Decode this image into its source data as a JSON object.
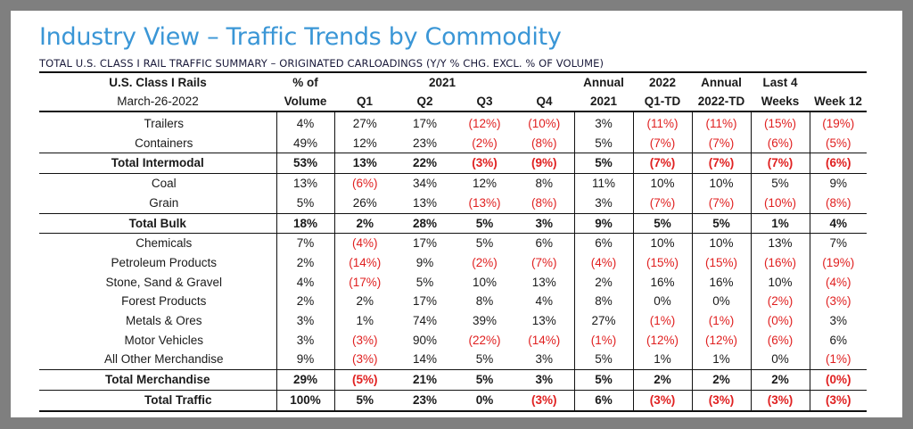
{
  "page": {
    "title": "Industry View – Traffic Trends by Commodity",
    "subtitle": "TOTAL U.S. CLASS I RAIL TRAFFIC SUMMARY – ORIGINATED CARLOADINGS (Y/Y % CHG. EXCL. % OF VOLUME)"
  },
  "colors": {
    "title": "#3a96d6",
    "negative": "#e02020",
    "frame": "#7f7f7f"
  },
  "table": {
    "header_row1": {
      "label": "U.S. Class I Rails",
      "volume": "% of",
      "year_group": "2021",
      "annual": "Annual",
      "q1td": "2022",
      "annual_td": "Annual",
      "last4": "Last 4",
      "week": ""
    },
    "header_row2": {
      "label": "March-26-2022",
      "volume": "Volume",
      "q1": "Q1",
      "q2": "Q2",
      "q3": "Q3",
      "q4": "Q4",
      "annual": "2021",
      "q1td": "Q1-TD",
      "annual_td": "2022-TD",
      "last4": "Weeks",
      "week": "Week 12"
    },
    "rows": [
      {
        "label": "Trailers",
        "type": "sub",
        "values": [
          "4%",
          "27%",
          "17%",
          "(12%)",
          "(10%)",
          "3%",
          "(11%)",
          "(11%)",
          "(15%)",
          "(19%)"
        ]
      },
      {
        "label": "Containers",
        "type": "sub",
        "values": [
          "49%",
          "12%",
          "23%",
          "(2%)",
          "(8%)",
          "5%",
          "(7%)",
          "(7%)",
          "(6%)",
          "(5%)"
        ]
      },
      {
        "label": "Total Intermodal",
        "type": "total",
        "values": [
          "53%",
          "13%",
          "22%",
          "(3%)",
          "(9%)",
          "5%",
          "(7%)",
          "(7%)",
          "(7%)",
          "(6%)"
        ]
      },
      {
        "label": "Coal",
        "type": "sub",
        "values": [
          "13%",
          "(6%)",
          "34%",
          "12%",
          "8%",
          "11%",
          "10%",
          "10%",
          "5%",
          "9%"
        ]
      },
      {
        "label": "Grain",
        "type": "sub",
        "values": [
          "5%",
          "26%",
          "13%",
          "(13%)",
          "(8%)",
          "3%",
          "(7%)",
          "(7%)",
          "(10%)",
          "(8%)"
        ]
      },
      {
        "label": "Total Bulk",
        "type": "total",
        "values": [
          "18%",
          "2%",
          "28%",
          "5%",
          "3%",
          "9%",
          "5%",
          "5%",
          "1%",
          "4%"
        ]
      },
      {
        "label": "Chemicals",
        "type": "sub",
        "values": [
          "7%",
          "(4%)",
          "17%",
          "5%",
          "6%",
          "6%",
          "10%",
          "10%",
          "13%",
          "7%"
        ]
      },
      {
        "label": "Petroleum Products",
        "type": "sub",
        "values": [
          "2%",
          "(14%)",
          "9%",
          "(2%)",
          "(7%)",
          "(4%)",
          "(15%)",
          "(15%)",
          "(16%)",
          "(19%)"
        ]
      },
      {
        "label": "Stone, Sand & Gravel",
        "type": "sub",
        "values": [
          "4%",
          "(17%)",
          "5%",
          "10%",
          "13%",
          "2%",
          "16%",
          "16%",
          "10%",
          "(4%)"
        ]
      },
      {
        "label": "Forest Products",
        "type": "sub",
        "values": [
          "2%",
          "2%",
          "17%",
          "8%",
          "4%",
          "8%",
          "0%",
          "0%",
          "(2%)",
          "(3%)"
        ]
      },
      {
        "label": "Metals & Ores",
        "type": "sub",
        "values": [
          "3%",
          "1%",
          "74%",
          "39%",
          "13%",
          "27%",
          "(1%)",
          "(1%)",
          "(0%)",
          "3%"
        ]
      },
      {
        "label": "Motor Vehicles",
        "type": "sub",
        "values": [
          "3%",
          "(3%)",
          "90%",
          "(22%)",
          "(14%)",
          "(1%)",
          "(12%)",
          "(12%)",
          "(6%)",
          "6%"
        ]
      },
      {
        "label": "All Other Merchandise",
        "type": "sub",
        "values": [
          "9%",
          "(3%)",
          "14%",
          "5%",
          "3%",
          "5%",
          "1%",
          "1%",
          "0%",
          "(1%)"
        ]
      },
      {
        "label": "Total Merchandise",
        "type": "total",
        "values": [
          "29%",
          "(5%)",
          "21%",
          "5%",
          "3%",
          "5%",
          "2%",
          "2%",
          "2%",
          "(0%)"
        ]
      },
      {
        "label": "Total Traffic",
        "type": "grand",
        "values": [
          "100%",
          "5%",
          "23%",
          "0%",
          "(3%)",
          "6%",
          "(3%)",
          "(3%)",
          "(3%)",
          "(3%)"
        ]
      }
    ]
  }
}
